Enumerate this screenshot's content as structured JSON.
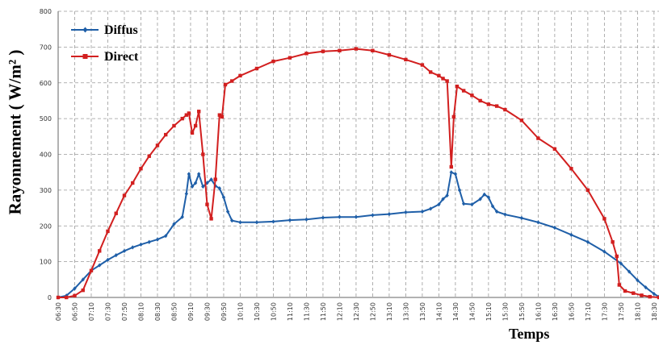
{
  "chart_data": {
    "type": "line",
    "xlabel": "Temps",
    "ylabel": "Rayonnement ( W/m² )",
    "ylim": [
      0,
      800
    ],
    "yticks": [
      0,
      100,
      200,
      300,
      400,
      500,
      600,
      700,
      800
    ],
    "grid": true,
    "legend_position": "top-left",
    "x_tick_labels": [
      "06:30",
      "06:50",
      "07:10",
      "07:30",
      "07:50",
      "08:10",
      "08:30",
      "08:50",
      "09:10",
      "09:30",
      "09:50",
      "10:10",
      "10:30",
      "10:50",
      "11:10",
      "11:30",
      "11:50",
      "12:10",
      "12:30",
      "12:50",
      "13:10",
      "13:30",
      "13:50",
      "14:10",
      "14:30",
      "14:50",
      "15:10",
      "15:30",
      "15:50",
      "16:10",
      "16:30",
      "16:50",
      "17:10",
      "17:30",
      "17:50",
      "18:10",
      "18:30"
    ],
    "series": [
      {
        "name": "Diffus",
        "color": "#1f5fa8",
        "marker": "diamond",
        "points": [
          [
            "06:30",
            0
          ],
          [
            "06:40",
            5
          ],
          [
            "06:50",
            25
          ],
          [
            "07:00",
            50
          ],
          [
            "07:10",
            75
          ],
          [
            "07:20",
            90
          ],
          [
            "07:30",
            105
          ],
          [
            "07:40",
            118
          ],
          [
            "07:50",
            130
          ],
          [
            "08:00",
            140
          ],
          [
            "08:10",
            148
          ],
          [
            "08:20",
            155
          ],
          [
            "08:30",
            162
          ],
          [
            "08:40",
            172
          ],
          [
            "08:50",
            205
          ],
          [
            "09:00",
            225
          ],
          [
            "09:05",
            290
          ],
          [
            "09:08",
            345
          ],
          [
            "09:12",
            310
          ],
          [
            "09:16",
            320
          ],
          [
            "09:20",
            345
          ],
          [
            "09:25",
            310
          ],
          [
            "09:30",
            320
          ],
          [
            "09:35",
            330
          ],
          [
            "09:40",
            312
          ],
          [
            "09:45",
            305
          ],
          [
            "09:50",
            280
          ],
          [
            "09:55",
            240
          ],
          [
            "10:00",
            215
          ],
          [
            "10:10",
            210
          ],
          [
            "10:30",
            210
          ],
          [
            "10:50",
            212
          ],
          [
            "11:10",
            216
          ],
          [
            "11:30",
            218
          ],
          [
            "11:50",
            223
          ],
          [
            "12:10",
            225
          ],
          [
            "12:30",
            225
          ],
          [
            "12:50",
            230
          ],
          [
            "13:10",
            233
          ],
          [
            "13:30",
            238
          ],
          [
            "13:50",
            240
          ],
          [
            "14:00",
            248
          ],
          [
            "14:10",
            260
          ],
          [
            "14:15",
            275
          ],
          [
            "14:20",
            285
          ],
          [
            "14:25",
            350
          ],
          [
            "14:30",
            345
          ],
          [
            "14:35",
            300
          ],
          [
            "14:40",
            262
          ],
          [
            "14:50",
            260
          ],
          [
            "15:00",
            275
          ],
          [
            "15:05",
            288
          ],
          [
            "15:10",
            280
          ],
          [
            "15:15",
            255
          ],
          [
            "15:20",
            240
          ],
          [
            "15:30",
            232
          ],
          [
            "15:50",
            222
          ],
          [
            "16:10",
            210
          ],
          [
            "16:30",
            195
          ],
          [
            "16:50",
            175
          ],
          [
            "17:10",
            155
          ],
          [
            "17:30",
            128
          ],
          [
            "17:50",
            95
          ],
          [
            "18:00",
            72
          ],
          [
            "18:10",
            48
          ],
          [
            "18:20",
            28
          ],
          [
            "18:30",
            10
          ],
          [
            "18:36",
            2
          ]
        ]
      },
      {
        "name": "Direct",
        "color": "#d21f1f",
        "marker": "square",
        "points": [
          [
            "06:30",
            0
          ],
          [
            "06:40",
            0
          ],
          [
            "06:50",
            5
          ],
          [
            "07:00",
            20
          ],
          [
            "07:10",
            75
          ],
          [
            "07:20",
            130
          ],
          [
            "07:30",
            185
          ],
          [
            "07:40",
            235
          ],
          [
            "07:50",
            285
          ],
          [
            "08:00",
            320
          ],
          [
            "08:10",
            360
          ],
          [
            "08:20",
            395
          ],
          [
            "08:30",
            425
          ],
          [
            "08:40",
            455
          ],
          [
            "08:50",
            480
          ],
          [
            "09:00",
            500
          ],
          [
            "09:05",
            510
          ],
          [
            "09:08",
            515
          ],
          [
            "09:12",
            460
          ],
          [
            "09:16",
            480
          ],
          [
            "09:20",
            520
          ],
          [
            "09:25",
            400
          ],
          [
            "09:30",
            260
          ],
          [
            "09:35",
            220
          ],
          [
            "09:40",
            330
          ],
          [
            "09:45",
            510
          ],
          [
            "09:48",
            505
          ],
          [
            "09:52",
            595
          ],
          [
            "10:00",
            605
          ],
          [
            "10:10",
            620
          ],
          [
            "10:30",
            640
          ],
          [
            "10:50",
            660
          ],
          [
            "11:10",
            670
          ],
          [
            "11:30",
            682
          ],
          [
            "11:50",
            688
          ],
          [
            "12:10",
            690
          ],
          [
            "12:30",
            695
          ],
          [
            "12:50",
            690
          ],
          [
            "13:10",
            678
          ],
          [
            "13:30",
            665
          ],
          [
            "13:50",
            650
          ],
          [
            "14:00",
            630
          ],
          [
            "14:10",
            620
          ],
          [
            "14:15",
            612
          ],
          [
            "14:20",
            605
          ],
          [
            "14:25",
            365
          ],
          [
            "14:28",
            505
          ],
          [
            "14:32",
            590
          ],
          [
            "14:40",
            578
          ],
          [
            "14:50",
            565
          ],
          [
            "15:00",
            550
          ],
          [
            "15:10",
            540
          ],
          [
            "15:20",
            535
          ],
          [
            "15:30",
            525
          ],
          [
            "15:50",
            495
          ],
          [
            "16:10",
            445
          ],
          [
            "16:30",
            415
          ],
          [
            "16:50",
            360
          ],
          [
            "17:10",
            300
          ],
          [
            "17:30",
            220
          ],
          [
            "17:40",
            155
          ],
          [
            "17:45",
            115
          ],
          [
            "17:48",
            35
          ],
          [
            "17:55",
            18
          ],
          [
            "18:05",
            12
          ],
          [
            "18:15",
            6
          ],
          [
            "18:25",
            2
          ],
          [
            "18:36",
            0
          ]
        ]
      }
    ]
  }
}
